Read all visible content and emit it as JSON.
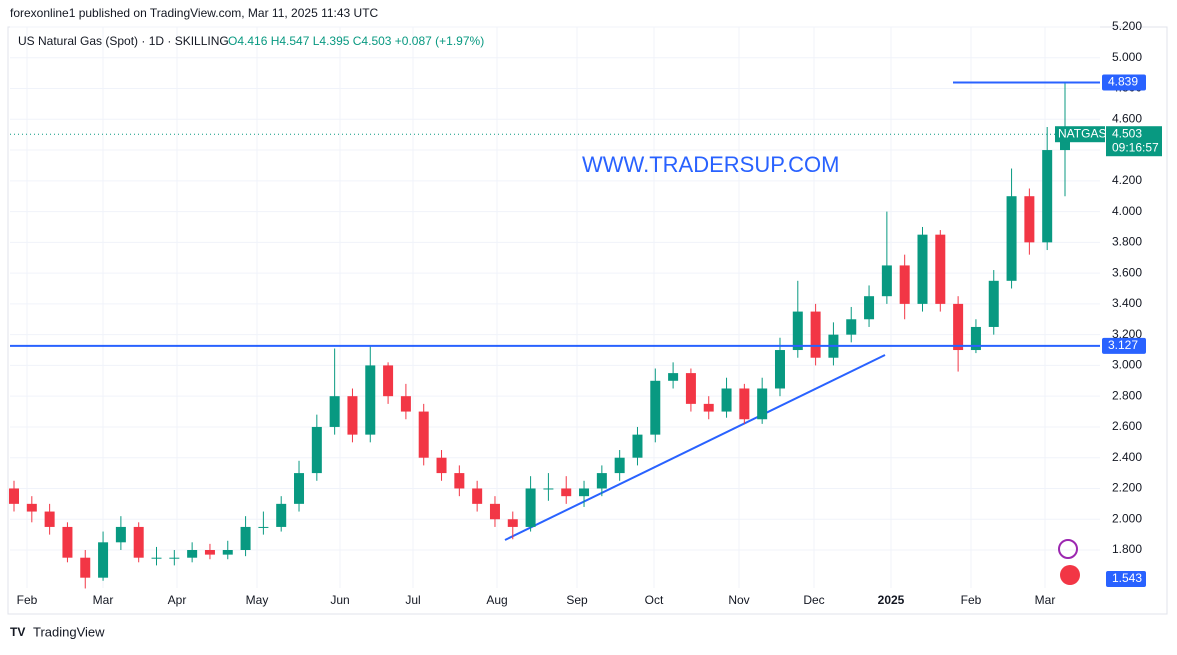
{
  "header": {
    "publisher": "forexonline1 published on TradingView.com, Mar 11, 2025 11:43 UTC"
  },
  "chart_data": {
    "type": "candlestick",
    "symbol": "US Natural Gas (Spot) · 1D · SKILLING",
    "ohlc_text": "O4.416 H4.547 L4.395 C4.503 +0.087 (+1.97%)",
    "watermark": "WWW.TRADERSUP.COM",
    "up_color": "#089981",
    "down_color": "#f23645",
    "open": [
      2.2,
      2.1,
      2.05,
      1.95,
      1.75,
      1.62,
      1.85,
      1.95,
      1.75,
      1.75,
      1.75,
      1.8,
      1.77,
      1.8,
      1.95,
      1.95,
      2.1,
      2.3,
      2.6,
      2.8,
      2.55,
      3.0,
      2.8,
      2.7,
      2.4,
      2.3,
      2.2,
      2.1,
      2.0,
      1.95,
      2.2,
      2.2,
      2.15,
      2.2,
      2.3,
      2.4,
      2.55,
      2.9,
      2.95,
      2.75,
      2.7,
      2.85,
      2.65,
      2.85,
      3.1,
      3.35,
      3.05,
      3.2,
      3.3,
      3.45,
      3.65,
      3.4,
      3.85,
      3.4,
      3.1,
      3.25,
      3.55,
      4.1,
      3.8,
      4.4
    ],
    "high": [
      2.25,
      2.15,
      2.1,
      1.98,
      1.8,
      1.92,
      2.02,
      1.98,
      1.82,
      1.8,
      1.85,
      1.84,
      1.86,
      2.02,
      2.05,
      2.15,
      2.38,
      2.68,
      3.11,
      2.85,
      3.13,
      3.02,
      2.88,
      2.75,
      2.45,
      2.35,
      2.25,
      2.15,
      2.05,
      2.28,
      2.3,
      2.28,
      2.25,
      2.35,
      2.45,
      2.6,
      2.98,
      3.02,
      2.98,
      2.8,
      2.92,
      2.88,
      2.92,
      3.18,
      3.55,
      3.4,
      3.28,
      3.38,
      3.52,
      4.0,
      3.72,
      3.9,
      3.88,
      3.45,
      3.3,
      3.62,
      4.28,
      4.15,
      4.55,
      4.839
    ],
    "low": [
      2.05,
      1.98,
      1.9,
      1.72,
      1.55,
      1.6,
      1.8,
      1.72,
      1.7,
      1.7,
      1.72,
      1.74,
      1.74,
      1.76,
      1.9,
      1.92,
      2.05,
      2.25,
      2.55,
      2.5,
      2.5,
      2.75,
      2.65,
      2.35,
      2.25,
      2.15,
      2.05,
      1.95,
      1.87,
      1.92,
      2.12,
      2.1,
      2.08,
      2.15,
      2.25,
      2.35,
      2.5,
      2.85,
      2.7,
      2.65,
      2.66,
      2.62,
      2.62,
      2.8,
      3.05,
      3.0,
      3.0,
      3.15,
      3.25,
      3.4,
      3.3,
      3.35,
      3.35,
      2.96,
      3.08,
      3.2,
      3.5,
      3.72,
      3.75,
      4.1
    ],
    "close": [
      2.1,
      2.05,
      1.95,
      1.75,
      1.62,
      1.85,
      1.95,
      1.75,
      1.75,
      1.75,
      1.8,
      1.77,
      1.8,
      1.95,
      1.95,
      2.1,
      2.3,
      2.6,
      2.8,
      2.55,
      3.0,
      2.8,
      2.7,
      2.4,
      2.3,
      2.2,
      2.1,
      2.0,
      1.95,
      2.2,
      2.2,
      2.15,
      2.2,
      2.3,
      2.4,
      2.55,
      2.9,
      2.95,
      2.75,
      2.7,
      2.85,
      2.65,
      2.85,
      3.1,
      3.35,
      3.05,
      3.2,
      3.3,
      3.45,
      3.65,
      3.4,
      3.85,
      3.4,
      3.1,
      3.25,
      3.55,
      4.1,
      3.8,
      4.4,
      4.503
    ],
    "xlabels": [
      "Feb",
      "Mar",
      "Apr",
      "May",
      "Jun",
      "Jul",
      "Aug",
      "Sep",
      "Oct",
      "Nov",
      "Dec",
      "2025",
      "Feb",
      "Mar"
    ],
    "ylim": [
      1.553,
      5.2
    ],
    "yticks": [
      {
        "value": 1.8,
        "label": "1.800"
      },
      {
        "value": 2.0,
        "label": "2.000"
      },
      {
        "value": 2.2,
        "label": "2.200"
      },
      {
        "value": 2.4,
        "label": "2.400"
      },
      {
        "value": 2.6,
        "label": "2.600"
      },
      {
        "value": 2.8,
        "label": "2.800"
      },
      {
        "value": 3.0,
        "label": "3.000"
      },
      {
        "value": 3.2,
        "label": "3.200"
      },
      {
        "value": 3.4,
        "label": "3.400"
      },
      {
        "value": 3.6,
        "label": "3.600"
      },
      {
        "value": 3.8,
        "label": "3.800"
      },
      {
        "value": 4.0,
        "label": "4.000"
      },
      {
        "value": 4.2,
        "label": "4.200"
      },
      {
        "value": 4.4,
        "label": "4.400"
      },
      {
        "value": 4.6,
        "label": "4.600"
      },
      {
        "value": 4.8,
        "label": "4.800"
      },
      {
        "value": 5.0,
        "label": "5.000"
      },
      {
        "value": 5.2,
        "label": "5.200"
      }
    ],
    "levels": [
      {
        "value": 3.127,
        "label": "3.127"
      },
      {
        "value": 4.839,
        "label": "4.839"
      }
    ],
    "last_price": {
      "symbol": "NATGAS",
      "value": 4.503,
      "label": "4.503",
      "countdown": "09:16:57"
    },
    "indicator_label": "1.543",
    "grid": true
  },
  "footer": {
    "brand": "TradingView"
  }
}
